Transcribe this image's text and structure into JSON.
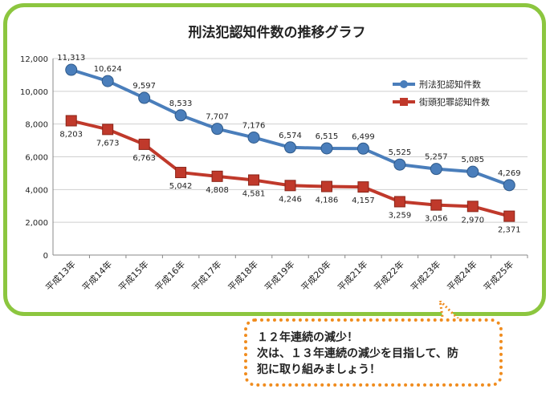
{
  "chart_data": {
    "type": "line",
    "title": "刑法犯認知件数の推移グラフ",
    "categories": [
      "平成13年",
      "平成14年",
      "平成15年",
      "平成16年",
      "平成17年",
      "平成18年",
      "平成19年",
      "平成20年",
      "平成21年",
      "平成22年",
      "平成23年",
      "平成24年",
      "平成25年"
    ],
    "ylim": [
      0,
      12000
    ],
    "yticks": [
      0,
      2000,
      4000,
      6000,
      8000,
      10000,
      12000
    ],
    "ytick_labels": [
      "0",
      "2,000",
      "4,000",
      "6,000",
      "8,000",
      "10,000",
      "12,000"
    ],
    "grid": true,
    "legend_position": "top-right",
    "series": [
      {
        "name": "刑法犯認知件数",
        "color": "#4a7ebb",
        "marker": "circle",
        "values": [
          11313,
          10624,
          9597,
          8533,
          7707,
          7176,
          6574,
          6515,
          6499,
          5525,
          5257,
          5085,
          4269
        ],
        "labels": [
          "11,313",
          "10,624",
          "9,597",
          "8,533",
          "7,707",
          "7,176",
          "6,574",
          "6,515",
          "6,499",
          "5,525",
          "5,257",
          "5,085",
          "4,269"
        ]
      },
      {
        "name": "街頭犯罪認知件数",
        "color": "#c0392b",
        "marker": "square",
        "values": [
          8203,
          7673,
          6763,
          5042,
          4808,
          4581,
          4246,
          4186,
          4157,
          3259,
          3056,
          2970,
          2371
        ],
        "labels": [
          "8,203",
          "7,673",
          "6,763",
          "5,042",
          "4,808",
          "4,581",
          "4,246",
          "4,186",
          "4,157",
          "3,259",
          "3,056",
          "2,970",
          "2,371"
        ]
      }
    ]
  },
  "colors": {
    "frame": "#8cc63f",
    "callout_border": "#f08c1e"
  },
  "callout": {
    "line1": "１２年連続の減少！",
    "line2": "次は、１３年連続の減少を目指して、防",
    "line3": "犯に取り組みましょう！"
  }
}
